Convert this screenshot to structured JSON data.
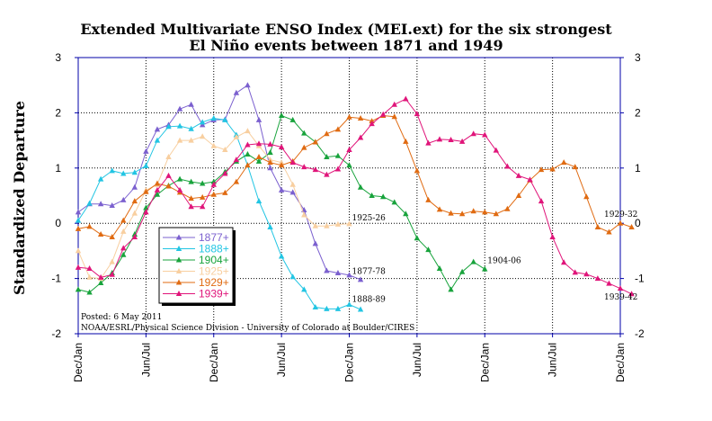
{
  "chart_data": {
    "type": "line",
    "title_line1": "Extended Multivariate ENSO Index (MEI.ext) for the six strongest",
    "title_line2": "El Niño events between 1871 and 1949",
    "ylabel": "Standardized Departure",
    "ylim": [
      -2,
      3
    ],
    "yticks": [
      "3",
      "2",
      "1",
      "0",
      "-1",
      "-2"
    ],
    "xticks": [
      "Dec/Jan",
      "Jun/Jul",
      "Dec/Jan",
      "Jun/Jul",
      "Dec/Jan",
      "Jun/Jul",
      "Dec/Jan",
      "Jun/Jul",
      "Dec/Jan"
    ],
    "xtick_positions": [
      0,
      6,
      12,
      18,
      24,
      30,
      36,
      42,
      48
    ],
    "x_range": [
      0,
      48
    ],
    "grid": "dotted",
    "series": [
      {
        "name": "1877+",
        "color": "#7b60cf",
        "marker": "triangle",
        "values": [
          0.2,
          0.35,
          0.35,
          0.32,
          0.42,
          0.65,
          1.3,
          1.7,
          1.78,
          2.07,
          2.15,
          1.78,
          1.87,
          1.88,
          2.36,
          2.5,
          1.87,
          1.0,
          0.6,
          0.56,
          0.24,
          -0.37,
          -0.86,
          -0.9,
          -0.94,
          -1.02
        ]
      },
      {
        "name": "1888+",
        "color": "#22c5e3",
        "marker": "triangle",
        "values": [
          0.05,
          0.36,
          0.8,
          0.95,
          0.9,
          0.92,
          1.04,
          1.5,
          1.75,
          1.76,
          1.71,
          1.83,
          1.9,
          1.87,
          1.6,
          1.05,
          0.4,
          -0.07,
          -0.6,
          -0.97,
          -1.2,
          -1.52,
          -1.55,
          -1.55,
          -1.47,
          -1.56
        ]
      },
      {
        "name": "1904+",
        "color": "#18a33c",
        "marker": "triangle",
        "values": [
          -1.2,
          -1.25,
          -1.08,
          -0.9,
          -0.57,
          -0.2,
          0.28,
          0.52,
          0.68,
          0.8,
          0.75,
          0.72,
          0.75,
          0.93,
          1.12,
          1.25,
          1.12,
          1.28,
          1.95,
          1.87,
          1.63,
          1.47,
          1.2,
          1.22,
          1.05,
          0.65,
          0.5,
          0.48,
          0.38,
          0.17,
          -0.27,
          -0.48,
          -0.82,
          -1.2,
          -0.88,
          -0.7,
          -0.83
        ]
      },
      {
        "name": "1925+",
        "color": "#f8cfa0",
        "marker": "triangle",
        "values": [
          -0.5,
          -0.98,
          -1.0,
          -0.7,
          -0.15,
          0.18,
          0.6,
          0.7,
          1.2,
          1.5,
          1.5,
          1.57,
          1.4,
          1.33,
          1.56,
          1.67,
          1.4,
          1.15,
          1.1,
          0.7,
          0.15,
          -0.05,
          -0.05,
          -0.02,
          -0.01
        ]
      },
      {
        "name": "1929+",
        "color": "#e06b12",
        "marker": "triangle",
        "values": [
          -0.1,
          -0.06,
          -0.2,
          -0.25,
          0.05,
          0.4,
          0.57,
          0.72,
          0.67,
          0.56,
          0.45,
          0.47,
          0.52,
          0.55,
          0.75,
          1.05,
          1.2,
          1.1,
          1.05,
          1.12,
          1.37,
          1.47,
          1.62,
          1.7,
          1.92,
          1.9,
          1.85,
          1.95,
          1.93,
          1.48,
          0.95,
          0.42,
          0.25,
          0.18,
          0.17,
          0.22,
          0.2,
          0.17,
          0.26,
          0.5,
          0.78,
          0.97,
          0.98,
          1.1,
          1.02,
          0.48,
          -0.07,
          -0.16,
          0.0,
          -0.07
        ]
      },
      {
        "name": "1939+",
        "color": "#e0157a",
        "marker": "triangle",
        "values": [
          -0.8,
          -0.82,
          -0.98,
          -0.93,
          -0.45,
          -0.25,
          0.2,
          0.6,
          0.86,
          0.6,
          0.3,
          0.3,
          0.7,
          0.9,
          1.15,
          1.42,
          1.44,
          1.43,
          1.38,
          1.1,
          1.02,
          0.97,
          0.88,
          0.98,
          1.33,
          1.55,
          1.8,
          1.97,
          2.15,
          2.25,
          1.98,
          1.45,
          1.52,
          1.51,
          1.48,
          1.62,
          1.6,
          1.32,
          1.03,
          0.86,
          0.79,
          0.4,
          -0.25,
          -0.71,
          -0.89,
          -0.92,
          -1.0,
          -1.09,
          -1.18,
          -1.28
        ]
      }
    ],
    "annotations": [
      {
        "text": "1925-26",
        "x": 24,
        "y": 0.05
      },
      {
        "text": "1877-78",
        "x": 24,
        "y": -0.92
      },
      {
        "text": "1888-89",
        "x": 24,
        "y": -1.42
      },
      {
        "text": "1904-06",
        "x": 36,
        "y": -0.72
      },
      {
        "text": "1929-32",
        "x": 48,
        "y": 0.12
      },
      {
        "text": "1939-42",
        "x": 48,
        "y": -1.38
      }
    ],
    "credits": [
      "Posted: 6 May 2011",
      "NOAA/ESRL/Physical Science Division - University of Colorado at Boulder/CIRES"
    ]
  }
}
